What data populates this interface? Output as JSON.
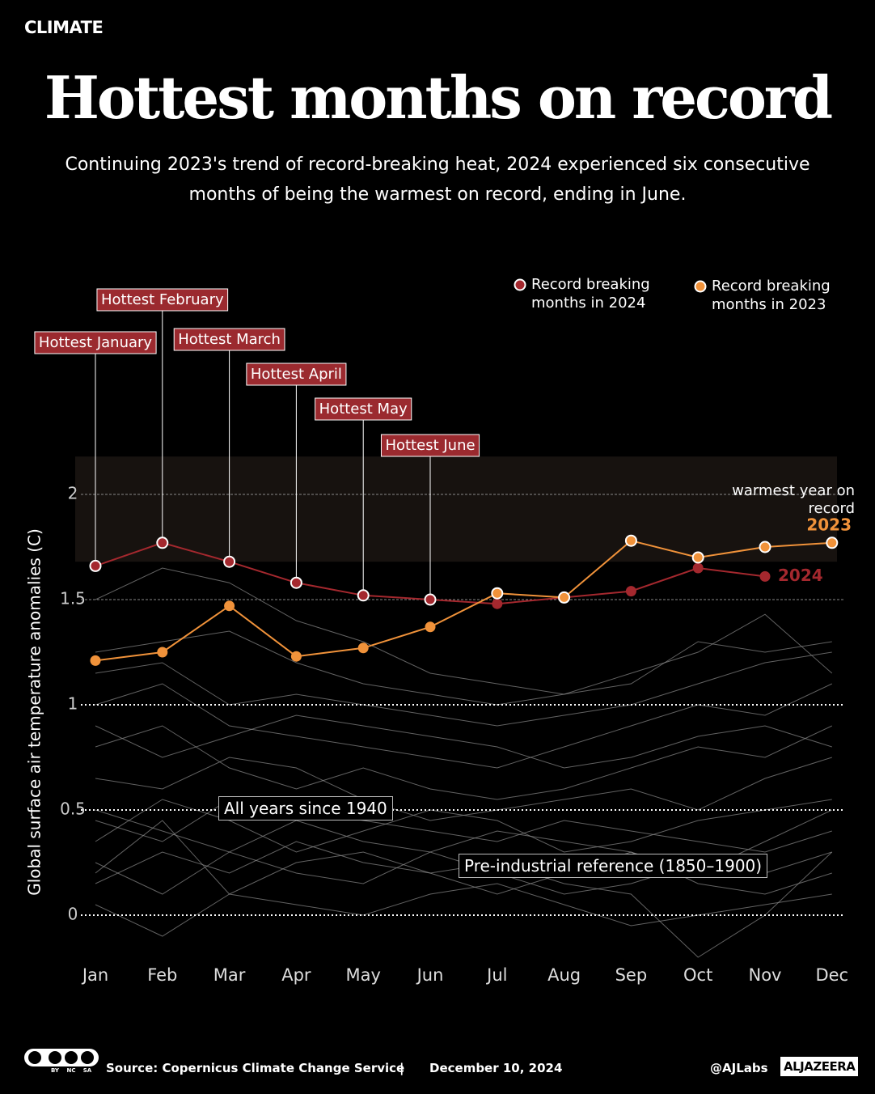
{
  "header": {
    "section": "CLIMATE",
    "title": "Hottest months on record",
    "subtitle": "Continuing 2023's trend of record-breaking heat, 2024 experienced six consecutive months of being the warmest on record, ending in June."
  },
  "chart_data": {
    "type": "line",
    "y_label": "Global surface air temperature anomalies (C)",
    "categories": [
      "Jan",
      "Feb",
      "Mar",
      "Apr",
      "May",
      "Jun",
      "Jul",
      "Aug",
      "Sep",
      "Oct",
      "Nov",
      "Dec"
    ],
    "ylim": [
      -0.2,
      2.2
    ],
    "yticks": [
      0,
      0.5,
      1,
      1.5,
      2
    ],
    "grid_styles": [
      "dotted",
      "dotted",
      "dotted",
      "dashed",
      "dashed"
    ],
    "series": [
      {
        "name": "2024",
        "legend_label": "Record breaking months in 2024",
        "color": "#a4282e",
        "values": [
          1.66,
          1.77,
          1.68,
          1.58,
          1.52,
          1.5,
          1.48,
          1.51,
          1.54,
          1.65,
          1.61,
          null
        ],
        "record": [
          true,
          true,
          true,
          true,
          true,
          true,
          false,
          false,
          false,
          false,
          false,
          false
        ]
      },
      {
        "name": "2023",
        "legend_label": "Record breaking months in 2023",
        "color": "#f0923a",
        "values": [
          1.21,
          1.25,
          1.47,
          1.23,
          1.27,
          1.37,
          1.53,
          1.51,
          1.78,
          1.7,
          1.75,
          1.77
        ],
        "record": [
          false,
          false,
          false,
          false,
          false,
          false,
          true,
          true,
          true,
          true,
          true,
          true
        ]
      }
    ],
    "warmest_band": {
      "ylim": [
        1.68,
        2.18
      ],
      "label": "warmest year on record"
    },
    "annotations": [
      {
        "text": "Hottest January",
        "series": 0,
        "index": 0
      },
      {
        "text": "Hottest February",
        "series": 0,
        "index": 1
      },
      {
        "text": "Hottest March",
        "series": 0,
        "index": 2
      },
      {
        "text": "Hottest April",
        "series": 0,
        "index": 3
      },
      {
        "text": "Hottest May",
        "series": 0,
        "index": 4
      },
      {
        "text": "Hottest June",
        "series": 0,
        "index": 5
      }
    ]
  },
  "background_series": {
    "label": "All years since 1940",
    "color": "#8c8c8c",
    "values": [
      [
        0.25,
        0.1,
        0.3,
        0.2,
        0.15,
        0.3,
        0.2,
        0.1,
        0.15,
        0.25,
        0.2,
        0.3
      ],
      [
        0.5,
        0.4,
        0.3,
        0.45,
        0.35,
        0.3,
        0.4,
        0.35,
        0.3,
        0.2,
        0.35,
        0.5
      ],
      [
        0.8,
        0.9,
        0.7,
        0.6,
        0.7,
        0.6,
        0.55,
        0.6,
        0.7,
        0.8,
        0.75,
        0.9
      ],
      [
        1.0,
        1.1,
        0.9,
        0.85,
        0.8,
        0.75,
        0.7,
        0.8,
        0.9,
        1.0,
        0.95,
        1.1
      ],
      [
        1.25,
        1.3,
        1.35,
        1.2,
        1.1,
        1.05,
        1.0,
        1.05,
        1.1,
        1.3,
        1.25,
        1.3
      ],
      [
        1.5,
        1.65,
        1.58,
        1.4,
        1.3,
        1.15,
        1.1,
        1.05,
        1.15,
        1.25,
        1.43,
        1.15
      ],
      [
        0.05,
        -0.1,
        0.1,
        0.05,
        0.0,
        0.1,
        0.15,
        0.05,
        -0.05,
        0.0,
        0.05,
        0.1
      ],
      [
        0.35,
        0.55,
        0.45,
        0.3,
        0.4,
        0.5,
        0.45,
        0.3,
        0.35,
        0.45,
        0.5,
        0.55
      ],
      [
        0.65,
        0.6,
        0.75,
        0.7,
        0.55,
        0.45,
        0.5,
        0.55,
        0.6,
        0.5,
        0.65,
        0.75
      ],
      [
        0.15,
        0.3,
        0.2,
        0.35,
        0.25,
        0.2,
        0.1,
        0.2,
        0.3,
        0.15,
        0.1,
        0.2
      ],
      [
        0.9,
        0.75,
        0.85,
        0.95,
        0.9,
        0.85,
        0.8,
        0.7,
        0.75,
        0.85,
        0.9,
        0.8
      ],
      [
        0.45,
        0.35,
        0.55,
        0.5,
        0.45,
        0.4,
        0.35,
        0.45,
        0.4,
        0.35,
        0.3,
        0.4
      ],
      [
        0.2,
        0.45,
        0.1,
        0.25,
        0.3,
        0.2,
        0.25,
        0.15,
        0.1,
        -0.2,
        0.0,
        0.3
      ],
      [
        1.15,
        1.2,
        1.0,
        1.05,
        1.0,
        0.95,
        0.9,
        0.95,
        1.0,
        1.1,
        1.2,
        1.25
      ]
    ]
  },
  "reference_label": "Pre-industrial reference (1850–1900)",
  "footer": {
    "license": [
      "BY",
      "NC",
      "SA"
    ],
    "source": "Source:  Copernicus Climate Change Service",
    "separator": "|",
    "date": "December 10, 2024",
    "handle": "@AJLabs",
    "brand": "ALJAZEERA"
  }
}
